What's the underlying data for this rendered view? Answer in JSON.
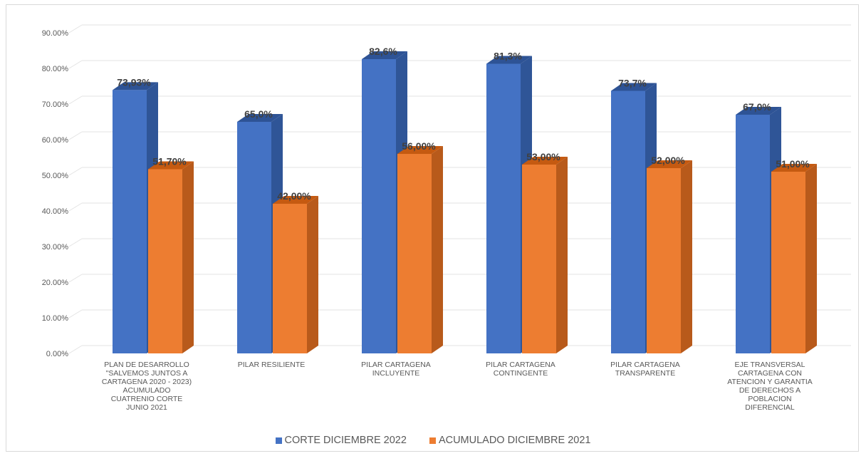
{
  "colors": {
    "series1_front": "#4472C4",
    "series1_side": "#2F5597",
    "series1_top": "#2E5395",
    "series2_front": "#ED7D31",
    "series2_side": "#B85A1B",
    "series2_top": "#C55A11",
    "grid": "#E3E3E3",
    "axis_text": "#595959"
  },
  "chart_data": {
    "type": "bar",
    "title": "",
    "xlabel": "",
    "ylabel": "",
    "ylim": [
      0,
      90
    ],
    "yticks": [
      "0.00%",
      "10.00%",
      "20.00%",
      "30.00%",
      "40.00%",
      "50.00%",
      "60.00%",
      "70.00%",
      "80.00%",
      "90.00%"
    ],
    "grid": true,
    "legend_position": "bottom",
    "categories": [
      "PLAN DE DESARROLLO \"SALVEMOS JUNTOS A CARTAGENA 2020 - 2023) ACUMULADO CUATRENIO CORTE JUNIO 2021",
      "PILAR RESILIENTE",
      "PILAR CARTAGENA INCLUYENTE",
      "PILAR CARTAGENA CONTINGENTE",
      "PILAR CARTAGENA TRANSPARENTE",
      "EJE TRANSVERSAL CARTAGENA CON ATENCION Y GARANTIA DE DERECHOS A POBLACION DIFERENCIAL"
    ],
    "category_lines": [
      [
        "PLAN DE DESARROLLO",
        "\"SALVEMOS JUNTOS A",
        "CARTAGENA 2020 - 2023)",
        "ACUMULADO",
        "CUATRENIO CORTE",
        "JUNIO 2021"
      ],
      [
        "PILAR RESILIENTE"
      ],
      [
        "PILAR CARTAGENA",
        "INCLUYENTE"
      ],
      [
        "PILAR CARTAGENA",
        "CONTINGENTE"
      ],
      [
        "PILAR CARTAGENA",
        "TRANSPARENTE"
      ],
      [
        "EJE TRANSVERSAL",
        "CARTAGENA CON",
        "ATENCION Y GARANTIA",
        "DE DERECHOS A",
        "POBLACION",
        "DIFERENCIAL"
      ]
    ],
    "series": [
      {
        "name": "CORTE  DICIEMBRE 2022",
        "values": [
          73.93,
          65.0,
          82.6,
          81.3,
          73.7,
          67.0
        ],
        "labels": [
          "73,93%",
          "65,0%",
          "82,6%",
          "81,3%",
          "73,7%",
          "67,0%"
        ]
      },
      {
        "name": "ACUMULADO DICIEMBRE  2021",
        "values": [
          51.7,
          42.0,
          56.0,
          53.0,
          52.0,
          51.0
        ],
        "labels": [
          "51,70%",
          "42,00%",
          "56,00%",
          "53,00%",
          "52,00%",
          "51,00%"
        ]
      }
    ]
  }
}
